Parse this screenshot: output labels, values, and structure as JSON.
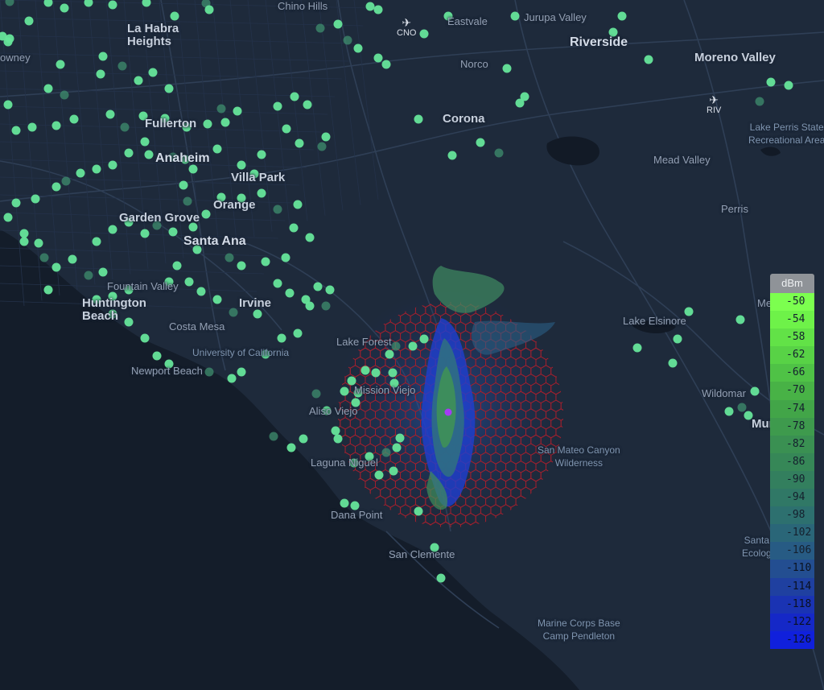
{
  "places": [
    {
      "id": "chino-hills",
      "label": "Chino Hills",
      "cls": "small"
    },
    {
      "id": "eastvale",
      "label": "Eastvale",
      "cls": "small"
    },
    {
      "id": "jurupa-valley",
      "label": "Jurupa Valley",
      "cls": "small"
    },
    {
      "id": "la-habra-heights",
      "label": "La Habra\nHeights",
      "cls": "city-md"
    },
    {
      "id": "riverside",
      "label": "Riverside",
      "cls": "city"
    },
    {
      "id": "moreno-valley",
      "label": "Moreno Valley",
      "cls": "city-md"
    },
    {
      "id": "downey",
      "label": "owney",
      "cls": "small"
    },
    {
      "id": "norco",
      "label": "Norco",
      "cls": "small"
    },
    {
      "id": "corona",
      "label": "Corona",
      "cls": "city-md"
    },
    {
      "id": "fullerton",
      "label": "Fullerton",
      "cls": "city-md"
    },
    {
      "id": "anaheim",
      "label": "Anaheim",
      "cls": "city"
    },
    {
      "id": "villa-park",
      "label": "Villa Park",
      "cls": "city-md"
    },
    {
      "id": "mead-valley",
      "label": "Mead Valley",
      "cls": "small"
    },
    {
      "id": "orange",
      "label": "Orange",
      "cls": "city-md"
    },
    {
      "id": "garden-grove",
      "label": "Garden Grove",
      "cls": "city-md"
    },
    {
      "id": "santa-ana",
      "label": "Santa Ana",
      "cls": "city"
    },
    {
      "id": "perris",
      "label": "Perris",
      "cls": "small"
    },
    {
      "id": "fountain-valley",
      "label": "Fountain Valley",
      "cls": "small"
    },
    {
      "id": "huntington-beach",
      "label": "Huntington\nBeach",
      "cls": "city-md"
    },
    {
      "id": "irvine",
      "label": "Irvine",
      "cls": "city-md"
    },
    {
      "id": "costa-mesa",
      "label": "Costa Mesa",
      "cls": "small"
    },
    {
      "id": "lake-elsinore",
      "label": "Lake Elsinore",
      "cls": "small"
    },
    {
      "id": "lake-forest",
      "label": "Lake Forest",
      "cls": "small"
    },
    {
      "id": "univ-california",
      "label": "University of California",
      "cls": "park"
    },
    {
      "id": "newport-beach",
      "label": "Newport Beach",
      "cls": "small"
    },
    {
      "id": "mission-viejo",
      "label": "Mission Viejo",
      "cls": "small"
    },
    {
      "id": "wildomar",
      "label": "Wildomar",
      "cls": "small"
    },
    {
      "id": "aliso-viejo",
      "label": "Aliso Viejo",
      "cls": "small"
    },
    {
      "id": "murrieta",
      "label": "Murrieta",
      "cls": "city-md"
    },
    {
      "id": "laguna-niguel",
      "label": "Laguna Niguel",
      "cls": "small"
    },
    {
      "id": "san-mateo",
      "label": "San Mateo Canyon\nWilderness",
      "cls": "park"
    },
    {
      "id": "dana-point",
      "label": "Dana Point",
      "cls": "small"
    },
    {
      "id": "san-clemente",
      "label": "San Clemente",
      "cls": "small"
    },
    {
      "id": "lake-perris",
      "label": "Lake Perris State\nRecreational Area",
      "cls": "park"
    },
    {
      "id": "santa-rosa",
      "label": "Santa\nEcolog",
      "cls": "park"
    },
    {
      "id": "me",
      "label": "Me",
      "cls": "small"
    },
    {
      "id": "marine-corps",
      "label": "Marine Corps Base\nCamp Pendleton",
      "cls": "park"
    }
  ],
  "airports": [
    {
      "id": "cno",
      "code": "CNO"
    },
    {
      "id": "riv",
      "code": "RIV"
    }
  ],
  "legend": {
    "unit": "dBm",
    "rows": [
      {
        "label": "-50",
        "color": "#7cff4f"
      },
      {
        "label": "-54",
        "color": "#6ef249"
      },
      {
        "label": "-58",
        "color": "#62e247"
      },
      {
        "label": "-62",
        "color": "#58d246"
      },
      {
        "label": "-66",
        "color": "#4fc246"
      },
      {
        "label": "-70",
        "color": "#48b246"
      },
      {
        "label": "-74",
        "color": "#42a548"
      },
      {
        "label": "-78",
        "color": "#3e9a4d"
      },
      {
        "label": "-82",
        "color": "#3a9052"
      },
      {
        "label": "-86",
        "color": "#368757"
      },
      {
        "label": "-90",
        "color": "#337f5e"
      },
      {
        "label": "-94",
        "color": "#307866"
      },
      {
        "label": "-98",
        "color": "#2d706f"
      },
      {
        "label": "-102",
        "color": "#2a6678"
      },
      {
        "label": "-106",
        "color": "#275b84"
      },
      {
        "label": "-110",
        "color": "#234e91"
      },
      {
        "label": "-114",
        "color": "#1f40a0"
      },
      {
        "label": "-118",
        "color": "#1a33b3"
      },
      {
        "label": "-122",
        "color": "#1528c7"
      },
      {
        "label": "-126",
        "color": "#1020dc"
      }
    ]
  },
  "colors": {
    "marker": "#66e59a",
    "marker_dim": "#2f6f5a",
    "hex_outline": "#a3202e",
    "site": "#a53bf5",
    "ocean": "#131c28",
    "land": "#1e2a3b",
    "roads": "#2c3a4f"
  }
}
